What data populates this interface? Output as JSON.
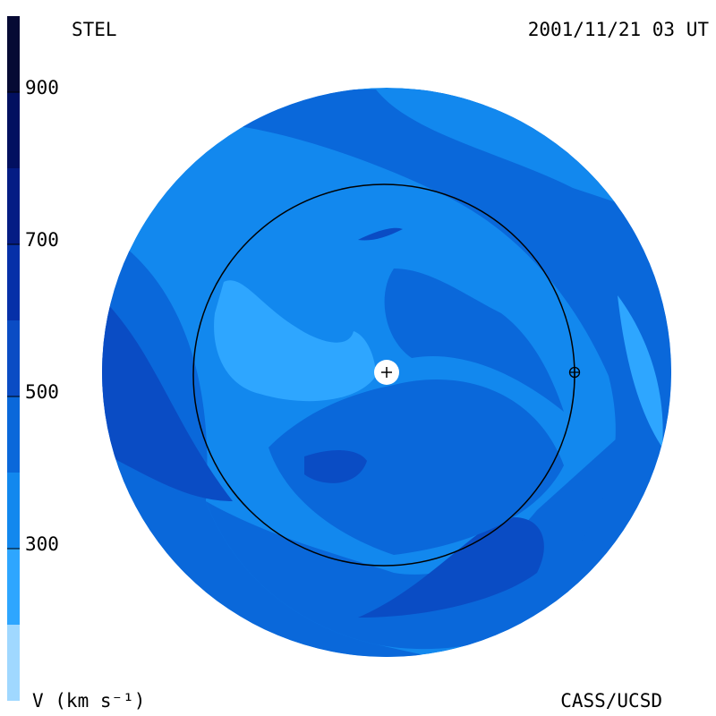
{
  "labels": {
    "observatory": "STEL",
    "time": "2001/11/21 03 UT",
    "units": "V (km s⁻¹)",
    "credit": "CASS/UCSD"
  },
  "colorbar": {
    "range": [
      100,
      1000
    ],
    "ticks": [
      300,
      500,
      700,
      900
    ],
    "bands": [
      {
        "from": 100,
        "to": 200,
        "color": "#a0d8ff"
      },
      {
        "from": 200,
        "to": 300,
        "color": "#2ea6ff"
      },
      {
        "from": 300,
        "to": 400,
        "color": "#1288ee"
      },
      {
        "from": 400,
        "to": 500,
        "color": "#0a68da"
      },
      {
        "from": 500,
        "to": 600,
        "color": "#0a4cc4"
      },
      {
        "from": 600,
        "to": 700,
        "color": "#0630a8"
      },
      {
        "from": 700,
        "to": 800,
        "color": "#041c84"
      },
      {
        "from": 800,
        "to": 900,
        "color": "#021060"
      },
      {
        "from": 900,
        "to": 1000,
        "color": "#060a34"
      }
    ]
  }
}
